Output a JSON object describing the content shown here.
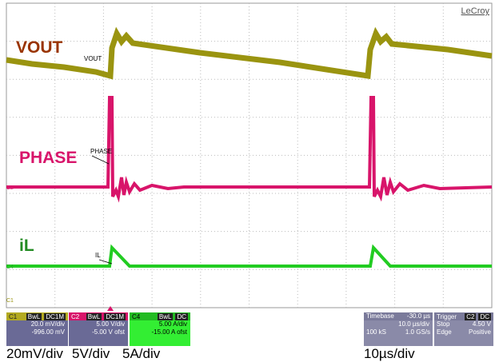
{
  "screen": {
    "brand": "LeCroy",
    "traces": [
      {
        "label": "VOUT",
        "tag": "VOUT"
      },
      {
        "label": "PHASE",
        "tag": "PHASE"
      },
      {
        "label": "iL",
        "tag": "IL"
      }
    ],
    "channel_markers": [
      "C2",
      "C4",
      "C1"
    ]
  },
  "panels": [
    {
      "channel": "C1",
      "flags": [
        "BwL",
        "DC1M"
      ],
      "lines": [
        "20.0 mV/div",
        "-996.00 mV"
      ]
    },
    {
      "channel": "C2",
      "flags": [
        "BwL",
        "DC1M"
      ],
      "lines": [
        "5.00 V/div",
        "-5.00 V ofst"
      ]
    },
    {
      "channel": "C4",
      "flags": [
        "BwL",
        "DC"
      ],
      "lines": [
        "5.00 A/div",
        "-15.00 A ofst"
      ]
    }
  ],
  "timebase": {
    "title": "Timebase",
    "offset": "-30.0 µs",
    "per_div": "10.0 µs/div",
    "samples": "100 kS",
    "rate": "1.0 GS/s"
  },
  "trigger": {
    "title": "Trigger",
    "flags": [
      "C2",
      "DC"
    ],
    "mode": "Stop",
    "level": "4.50 V",
    "type": "Edge",
    "slope": "Positive"
  },
  "captions": [
    "20mV/div",
    "5V/div",
    "5A/div",
    "10µs/div"
  ]
}
